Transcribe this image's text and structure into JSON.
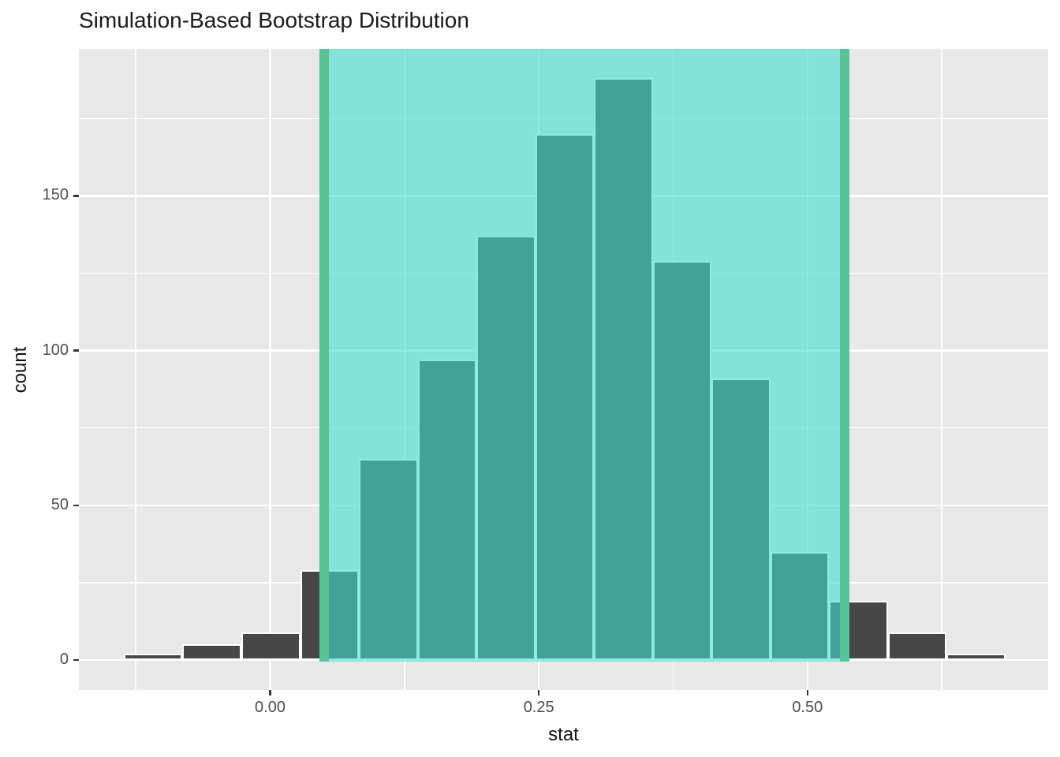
{
  "title": "Simulation-Based Bootstrap Distribution",
  "chart_data": {
    "type": "bar",
    "variant": "histogram",
    "title": "Simulation-Based Bootstrap Distribution",
    "xlabel": "stat",
    "ylabel": "count",
    "xlim": [
      -0.178,
      0.724
    ],
    "ylim": [
      -9.7,
      197.5
    ],
    "x_ticks": [
      {
        "value": 0.0,
        "label": "0.00"
      },
      {
        "value": 0.25,
        "label": "0.25"
      },
      {
        "value": 0.5,
        "label": "0.50"
      }
    ],
    "y_ticks": [
      {
        "value": 0,
        "label": "0"
      },
      {
        "value": 50,
        "label": "50"
      },
      {
        "value": 100,
        "label": "100"
      },
      {
        "value": 150,
        "label": "150"
      }
    ],
    "grid": {
      "x_minor": [
        -0.125,
        0.125,
        0.375,
        0.625
      ],
      "y_minor": [
        25,
        75,
        125,
        175
      ],
      "grid_on": true,
      "legend": "none"
    },
    "bins": {
      "start": -0.1362,
      "bin_width": 0.0547,
      "counts": [
        2,
        5,
        9,
        29,
        65,
        97,
        137,
        170,
        188,
        129,
        91,
        35,
        19,
        9,
        2
      ]
    },
    "confidence_interval": {
      "lower": 0.05,
      "upper": 0.535
    },
    "colors": {
      "panel_background": "#e8e8e8",
      "gridline": "#ffffff",
      "bar_fill": "#474747",
      "bar_border": "#ffffff",
      "ci_region_fill": "#40e0d0",
      "ci_region_alpha": 0.6,
      "ci_line": "#56c495",
      "tick_text": "#4d4d4d",
      "title_text": "#1a1a1a"
    }
  }
}
